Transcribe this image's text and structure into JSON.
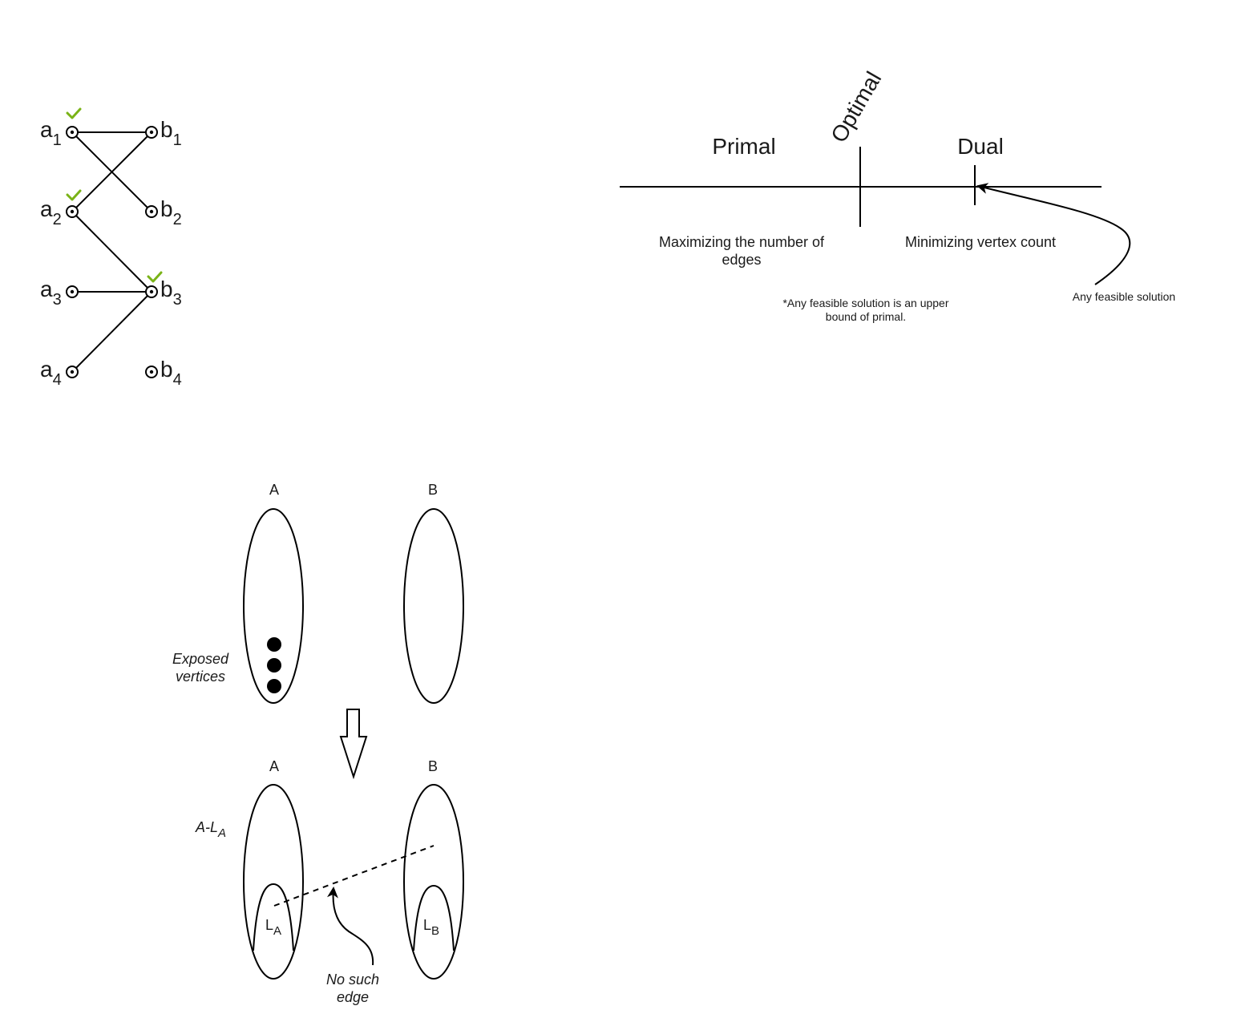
{
  "bipartite": {
    "left": [
      {
        "base": "a",
        "sub": "1",
        "checked": true
      },
      {
        "base": "a",
        "sub": "2",
        "checked": true
      },
      {
        "base": "a",
        "sub": "3",
        "checked": false
      },
      {
        "base": "a",
        "sub": "4",
        "checked": false
      }
    ],
    "right": [
      {
        "base": "b",
        "sub": "1",
        "checked": false
      },
      {
        "base": "b",
        "sub": "2",
        "checked": false
      },
      {
        "base": "b",
        "sub": "3",
        "checked": true
      },
      {
        "base": "b",
        "sub": "4",
        "checked": false
      }
    ],
    "edges": [
      [
        "a1",
        "b1"
      ],
      [
        "a1",
        "b2"
      ],
      [
        "a2",
        "b1"
      ],
      [
        "a2",
        "b3"
      ],
      [
        "a3",
        "b3"
      ],
      [
        "a4",
        "b3"
      ]
    ],
    "check_color": "#7ab317"
  },
  "number_line": {
    "primal_label": "Primal",
    "dual_label": "Dual",
    "optimal_label": "Optimal",
    "primal_caption_line1": "Maximizing the number of",
    "primal_caption_line2": "edges",
    "dual_caption": "Minimizing vertex count",
    "footnote_line1": "*Any feasible solution is an upper",
    "footnote_line2": "bound of primal.",
    "feasible_label": "Any feasible solution"
  },
  "sets_top": {
    "a_label": "A",
    "b_label": "B",
    "exposed_line1": "Exposed",
    "exposed_line2": "vertices"
  },
  "sets_bottom": {
    "a_label": "A",
    "b_label": "B",
    "a_minus_base": "A-L",
    "a_minus_sub": "A",
    "la_base": "L",
    "la_sub": "A",
    "lb_base": "L",
    "lb_sub": "B",
    "no_edge_line1": "No such",
    "no_edge_line2": "edge"
  }
}
